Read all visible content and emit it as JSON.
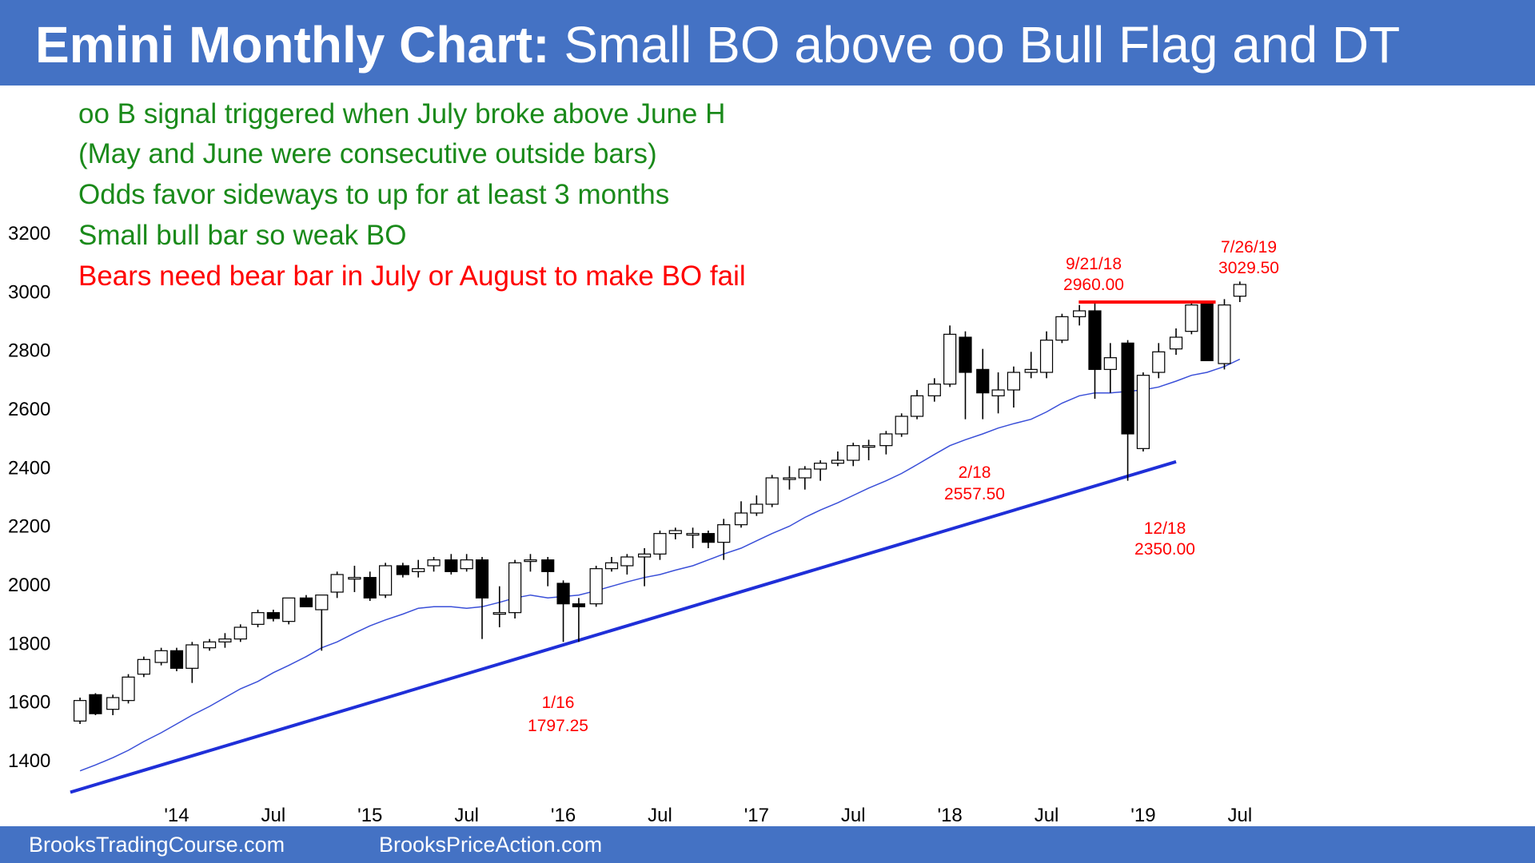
{
  "title": {
    "bold": "Emini Monthly Chart:",
    "rest": " Small BO above oo Bull Flag and DT"
  },
  "footer": {
    "left": "BrooksTradingCourse.com",
    "right": "BrooksPriceAction.com"
  },
  "colors": {
    "header_bg": "#4472c4",
    "green_text": "#1a8a1a",
    "red_text": "#ff0000",
    "trendline": "#1f2fd8",
    "moving_average": "#3a4fd8",
    "bull_candle": "#ffffff",
    "bear_candle": "#000000"
  },
  "chart_data": {
    "type": "candlestick",
    "title": "Emini Monthly Chart: Small BO above oo Bull Flag and DT",
    "yticks": [
      1400,
      1600,
      1800,
      2000,
      2200,
      2400,
      2600,
      2800,
      3000,
      3200
    ],
    "ylim": [
      1290,
      3250
    ],
    "xticks": [
      {
        "label": "'14",
        "x": 2014.0
      },
      {
        "label": "Jul",
        "x": 2014.5
      },
      {
        "label": "'15",
        "x": 2015.0
      },
      {
        "label": "Jul",
        "x": 2015.5
      },
      {
        "label": "'16",
        "x": 2016.0
      },
      {
        "label": "Jul",
        "x": 2016.5
      },
      {
        "label": "'17",
        "x": 2017.0
      },
      {
        "label": "Jul",
        "x": 2017.5
      },
      {
        "label": "'18",
        "x": 2018.0
      },
      {
        "label": "Jul",
        "x": 2018.5
      },
      {
        "label": "'19",
        "x": 2019.0
      },
      {
        "label": "Jul",
        "x": 2019.5
      }
    ],
    "xlim": [
      2013.45,
      2019.6
    ],
    "annotations_green": [
      "oo B signal triggered when July broke above June H",
      "(May and June were consecutive outside bars)",
      "Odds favor sideways to up for at least 3 months",
      "Small bull bar so weak BO"
    ],
    "annotation_red": "Bears need bear bar in July or August to make BO fail",
    "price_labels": [
      {
        "date": "9/21/18",
        "price": "2960.00"
      },
      {
        "date": "7/26/19",
        "price": "3029.50"
      },
      {
        "date": "2/18",
        "price": "2557.50"
      },
      {
        "date": "12/18",
        "price": "2350.00"
      },
      {
        "date": "1/16",
        "price": "1797.25"
      }
    ],
    "trendline": {
      "start": [
        2013.45,
        1287
      ],
      "end": [
        2019.17,
        2415
      ]
    },
    "resistance_line": {
      "start": [
        2018.6667,
        2960
      ],
      "end": [
        2019.3333,
        2960
      ]
    },
    "moving_average": {
      "x": [
        2013.5,
        2013.58,
        2013.67,
        2013.75,
        2013.83,
        2013.92,
        2014.0,
        2014.08,
        2014.17,
        2014.25,
        2014.33,
        2014.42,
        2014.5,
        2014.58,
        2014.67,
        2014.75,
        2014.83,
        2014.92,
        2015.0,
        2015.08,
        2015.17,
        2015.25,
        2015.33,
        2015.42,
        2015.5,
        2015.58,
        2015.67,
        2015.75,
        2015.83,
        2015.92,
        2016.0,
        2016.08,
        2016.17,
        2016.25,
        2016.33,
        2016.42,
        2016.5,
        2016.58,
        2016.67,
        2016.75,
        2016.83,
        2016.92,
        2017.0,
        2017.08,
        2017.17,
        2017.25,
        2017.33,
        2017.42,
        2017.5,
        2017.58,
        2017.67,
        2017.75,
        2017.83,
        2017.92,
        2018.0,
        2018.08,
        2018.17,
        2018.25,
        2018.33,
        2018.42,
        2018.5,
        2018.58,
        2018.67,
        2018.75,
        2018.83,
        2018.92,
        2019.0,
        2019.08,
        2019.17,
        2019.25,
        2019.33,
        2019.42,
        2019.5
      ],
      "y": [
        1360,
        1380,
        1405,
        1430,
        1460,
        1490,
        1520,
        1550,
        1580,
        1610,
        1640,
        1665,
        1695,
        1720,
        1750,
        1780,
        1800,
        1830,
        1855,
        1875,
        1895,
        1915,
        1920,
        1920,
        1915,
        1920,
        1935,
        1950,
        1960,
        1950,
        1955,
        1960,
        1975,
        1990,
        2005,
        2020,
        2030,
        2045,
        2060,
        2080,
        2100,
        2120,
        2145,
        2170,
        2195,
        2225,
        2250,
        2275,
        2300,
        2325,
        2350,
        2375,
        2405,
        2440,
        2470,
        2490,
        2510,
        2530,
        2545,
        2560,
        2585,
        2615,
        2640,
        2650,
        2650,
        2655,
        2660,
        2670,
        2690,
        2710,
        2720,
        2740,
        2765
      ]
    },
    "candles": [
      {
        "t": 2013.5,
        "o": 1530,
        "h": 1610,
        "l": 1520,
        "c": 1600
      },
      {
        "t": 2013.58,
        "o": 1620,
        "h": 1625,
        "l": 1550,
        "c": 1555
      },
      {
        "t": 2013.67,
        "o": 1570,
        "h": 1620,
        "l": 1550,
        "c": 1610
      },
      {
        "t": 2013.75,
        "o": 1600,
        "h": 1690,
        "l": 1590,
        "c": 1680
      },
      {
        "t": 2013.83,
        "o": 1690,
        "h": 1750,
        "l": 1680,
        "c": 1740
      },
      {
        "t": 2013.92,
        "o": 1730,
        "h": 1780,
        "l": 1720,
        "c": 1770
      },
      {
        "t": 2014.0,
        "o": 1770,
        "h": 1780,
        "l": 1700,
        "c": 1710
      },
      {
        "t": 2014.08,
        "o": 1710,
        "h": 1800,
        "l": 1660,
        "c": 1790
      },
      {
        "t": 2014.17,
        "o": 1780,
        "h": 1810,
        "l": 1770,
        "c": 1800
      },
      {
        "t": 2014.25,
        "o": 1800,
        "h": 1830,
        "l": 1780,
        "c": 1810
      },
      {
        "t": 2014.33,
        "o": 1810,
        "h": 1860,
        "l": 1800,
        "c": 1850
      },
      {
        "t": 2014.42,
        "o": 1860,
        "h": 1910,
        "l": 1850,
        "c": 1900
      },
      {
        "t": 2014.5,
        "o": 1900,
        "h": 1910,
        "l": 1870,
        "c": 1880
      },
      {
        "t": 2014.58,
        "o": 1870,
        "h": 1950,
        "l": 1860,
        "c": 1950
      },
      {
        "t": 2014.67,
        "o": 1950,
        "h": 1960,
        "l": 1920,
        "c": 1920
      },
      {
        "t": 2014.75,
        "o": 1910,
        "h": 1960,
        "l": 1770,
        "c": 1960
      },
      {
        "t": 2014.83,
        "o": 1970,
        "h": 2040,
        "l": 1950,
        "c": 2030
      },
      {
        "t": 2014.92,
        "o": 2020,
        "h": 2060,
        "l": 1970,
        "c": 2020
      },
      {
        "t": 2015.0,
        "o": 2020,
        "h": 2040,
        "l": 1940,
        "c": 1950
      },
      {
        "t": 2015.08,
        "o": 1960,
        "h": 2070,
        "l": 1950,
        "c": 2060
      },
      {
        "t": 2015.17,
        "o": 2060,
        "h": 2070,
        "l": 2020,
        "c": 2030
      },
      {
        "t": 2015.25,
        "o": 2040,
        "h": 2080,
        "l": 2020,
        "c": 2050
      },
      {
        "t": 2015.33,
        "o": 2060,
        "h": 2090,
        "l": 2040,
        "c": 2080
      },
      {
        "t": 2015.42,
        "o": 2080,
        "h": 2100,
        "l": 2030,
        "c": 2040
      },
      {
        "t": 2015.5,
        "o": 2050,
        "h": 2100,
        "l": 2040,
        "c": 2080
      },
      {
        "t": 2015.58,
        "o": 2080,
        "h": 2090,
        "l": 1810,
        "c": 1950
      },
      {
        "t": 2015.67,
        "o": 1900,
        "h": 1990,
        "l": 1850,
        "c": 1900
      },
      {
        "t": 2015.75,
        "o": 1900,
        "h": 2080,
        "l": 1880,
        "c": 2070
      },
      {
        "t": 2015.83,
        "o": 2080,
        "h": 2100,
        "l": 2040,
        "c": 2080
      },
      {
        "t": 2015.92,
        "o": 2080,
        "h": 2090,
        "l": 1990,
        "c": 2040
      },
      {
        "t": 2016.0,
        "o": 2000,
        "h": 2010,
        "l": 1800,
        "c": 1930
      },
      {
        "t": 2016.08,
        "o": 1930,
        "h": 1950,
        "l": 1800,
        "c": 1920
      },
      {
        "t": 2016.17,
        "o": 1930,
        "h": 2060,
        "l": 1920,
        "c": 2050
      },
      {
        "t": 2016.25,
        "o": 2050,
        "h": 2090,
        "l": 2040,
        "c": 2070
      },
      {
        "t": 2016.33,
        "o": 2060,
        "h": 2100,
        "l": 2030,
        "c": 2090
      },
      {
        "t": 2016.42,
        "o": 2090,
        "h": 2120,
        "l": 1990,
        "c": 2100
      },
      {
        "t": 2016.5,
        "o": 2100,
        "h": 2180,
        "l": 2080,
        "c": 2170
      },
      {
        "t": 2016.58,
        "o": 2170,
        "h": 2190,
        "l": 2150,
        "c": 2180
      },
      {
        "t": 2016.67,
        "o": 2170,
        "h": 2190,
        "l": 2120,
        "c": 2170
      },
      {
        "t": 2016.75,
        "o": 2170,
        "h": 2180,
        "l": 2120,
        "c": 2140
      },
      {
        "t": 2016.83,
        "o": 2140,
        "h": 2220,
        "l": 2080,
        "c": 2200
      },
      {
        "t": 2016.92,
        "o": 2200,
        "h": 2280,
        "l": 2190,
        "c": 2240
      },
      {
        "t": 2017.0,
        "o": 2240,
        "h": 2300,
        "l": 2230,
        "c": 2270
      },
      {
        "t": 2017.08,
        "o": 2270,
        "h": 2370,
        "l": 2260,
        "c": 2360
      },
      {
        "t": 2017.17,
        "o": 2360,
        "h": 2400,
        "l": 2320,
        "c": 2360
      },
      {
        "t": 2017.25,
        "o": 2360,
        "h": 2400,
        "l": 2320,
        "c": 2390
      },
      {
        "t": 2017.33,
        "o": 2390,
        "h": 2420,
        "l": 2350,
        "c": 2410
      },
      {
        "t": 2017.42,
        "o": 2410,
        "h": 2450,
        "l": 2400,
        "c": 2420
      },
      {
        "t": 2017.5,
        "o": 2420,
        "h": 2480,
        "l": 2400,
        "c": 2470
      },
      {
        "t": 2017.58,
        "o": 2470,
        "h": 2490,
        "l": 2420,
        "c": 2470
      },
      {
        "t": 2017.67,
        "o": 2470,
        "h": 2520,
        "l": 2440,
        "c": 2510
      },
      {
        "t": 2017.75,
        "o": 2510,
        "h": 2580,
        "l": 2500,
        "c": 2570
      },
      {
        "t": 2017.83,
        "o": 2570,
        "h": 2660,
        "l": 2560,
        "c": 2640
      },
      {
        "t": 2017.92,
        "o": 2640,
        "h": 2700,
        "l": 2620,
        "c": 2680
      },
      {
        "t": 2018.0,
        "o": 2680,
        "h": 2880,
        "l": 2670,
        "c": 2850
      },
      {
        "t": 2018.08,
        "o": 2840,
        "h": 2860,
        "l": 2560,
        "c": 2720
      },
      {
        "t": 2018.17,
        "o": 2730,
        "h": 2800,
        "l": 2560,
        "c": 2650
      },
      {
        "t": 2018.25,
        "o": 2640,
        "h": 2720,
        "l": 2580,
        "c": 2660
      },
      {
        "t": 2018.33,
        "o": 2660,
        "h": 2740,
        "l": 2600,
        "c": 2720
      },
      {
        "t": 2018.42,
        "o": 2720,
        "h": 2790,
        "l": 2700,
        "c": 2730
      },
      {
        "t": 2018.5,
        "o": 2720,
        "h": 2860,
        "l": 2700,
        "c": 2830
      },
      {
        "t": 2018.58,
        "o": 2830,
        "h": 2920,
        "l": 2820,
        "c": 2910
      },
      {
        "t": 2018.67,
        "o": 2910,
        "h": 2950,
        "l": 2880,
        "c": 2930
      },
      {
        "t": 2018.75,
        "o": 2930,
        "h": 2960,
        "l": 2630,
        "c": 2730
      },
      {
        "t": 2018.83,
        "o": 2730,
        "h": 2820,
        "l": 2650,
        "c": 2770
      },
      {
        "t": 2018.92,
        "o": 2820,
        "h": 2830,
        "l": 2350,
        "c": 2510
      },
      {
        "t": 2019.0,
        "o": 2460,
        "h": 2720,
        "l": 2450,
        "c": 2710
      },
      {
        "t": 2019.08,
        "o": 2720,
        "h": 2820,
        "l": 2700,
        "c": 2790
      },
      {
        "t": 2019.17,
        "o": 2800,
        "h": 2870,
        "l": 2780,
        "c": 2840
      },
      {
        "t": 2019.25,
        "o": 2860,
        "h": 2960,
        "l": 2850,
        "c": 2950
      },
      {
        "t": 2019.33,
        "o": 2960,
        "h": 2965,
        "l": 2760,
        "c": 2760
      },
      {
        "t": 2019.42,
        "o": 2750,
        "h": 2970,
        "l": 2730,
        "c": 2950
      },
      {
        "t": 2019.5,
        "o": 2980,
        "h": 3030,
        "l": 2960,
        "c": 3020
      }
    ]
  }
}
